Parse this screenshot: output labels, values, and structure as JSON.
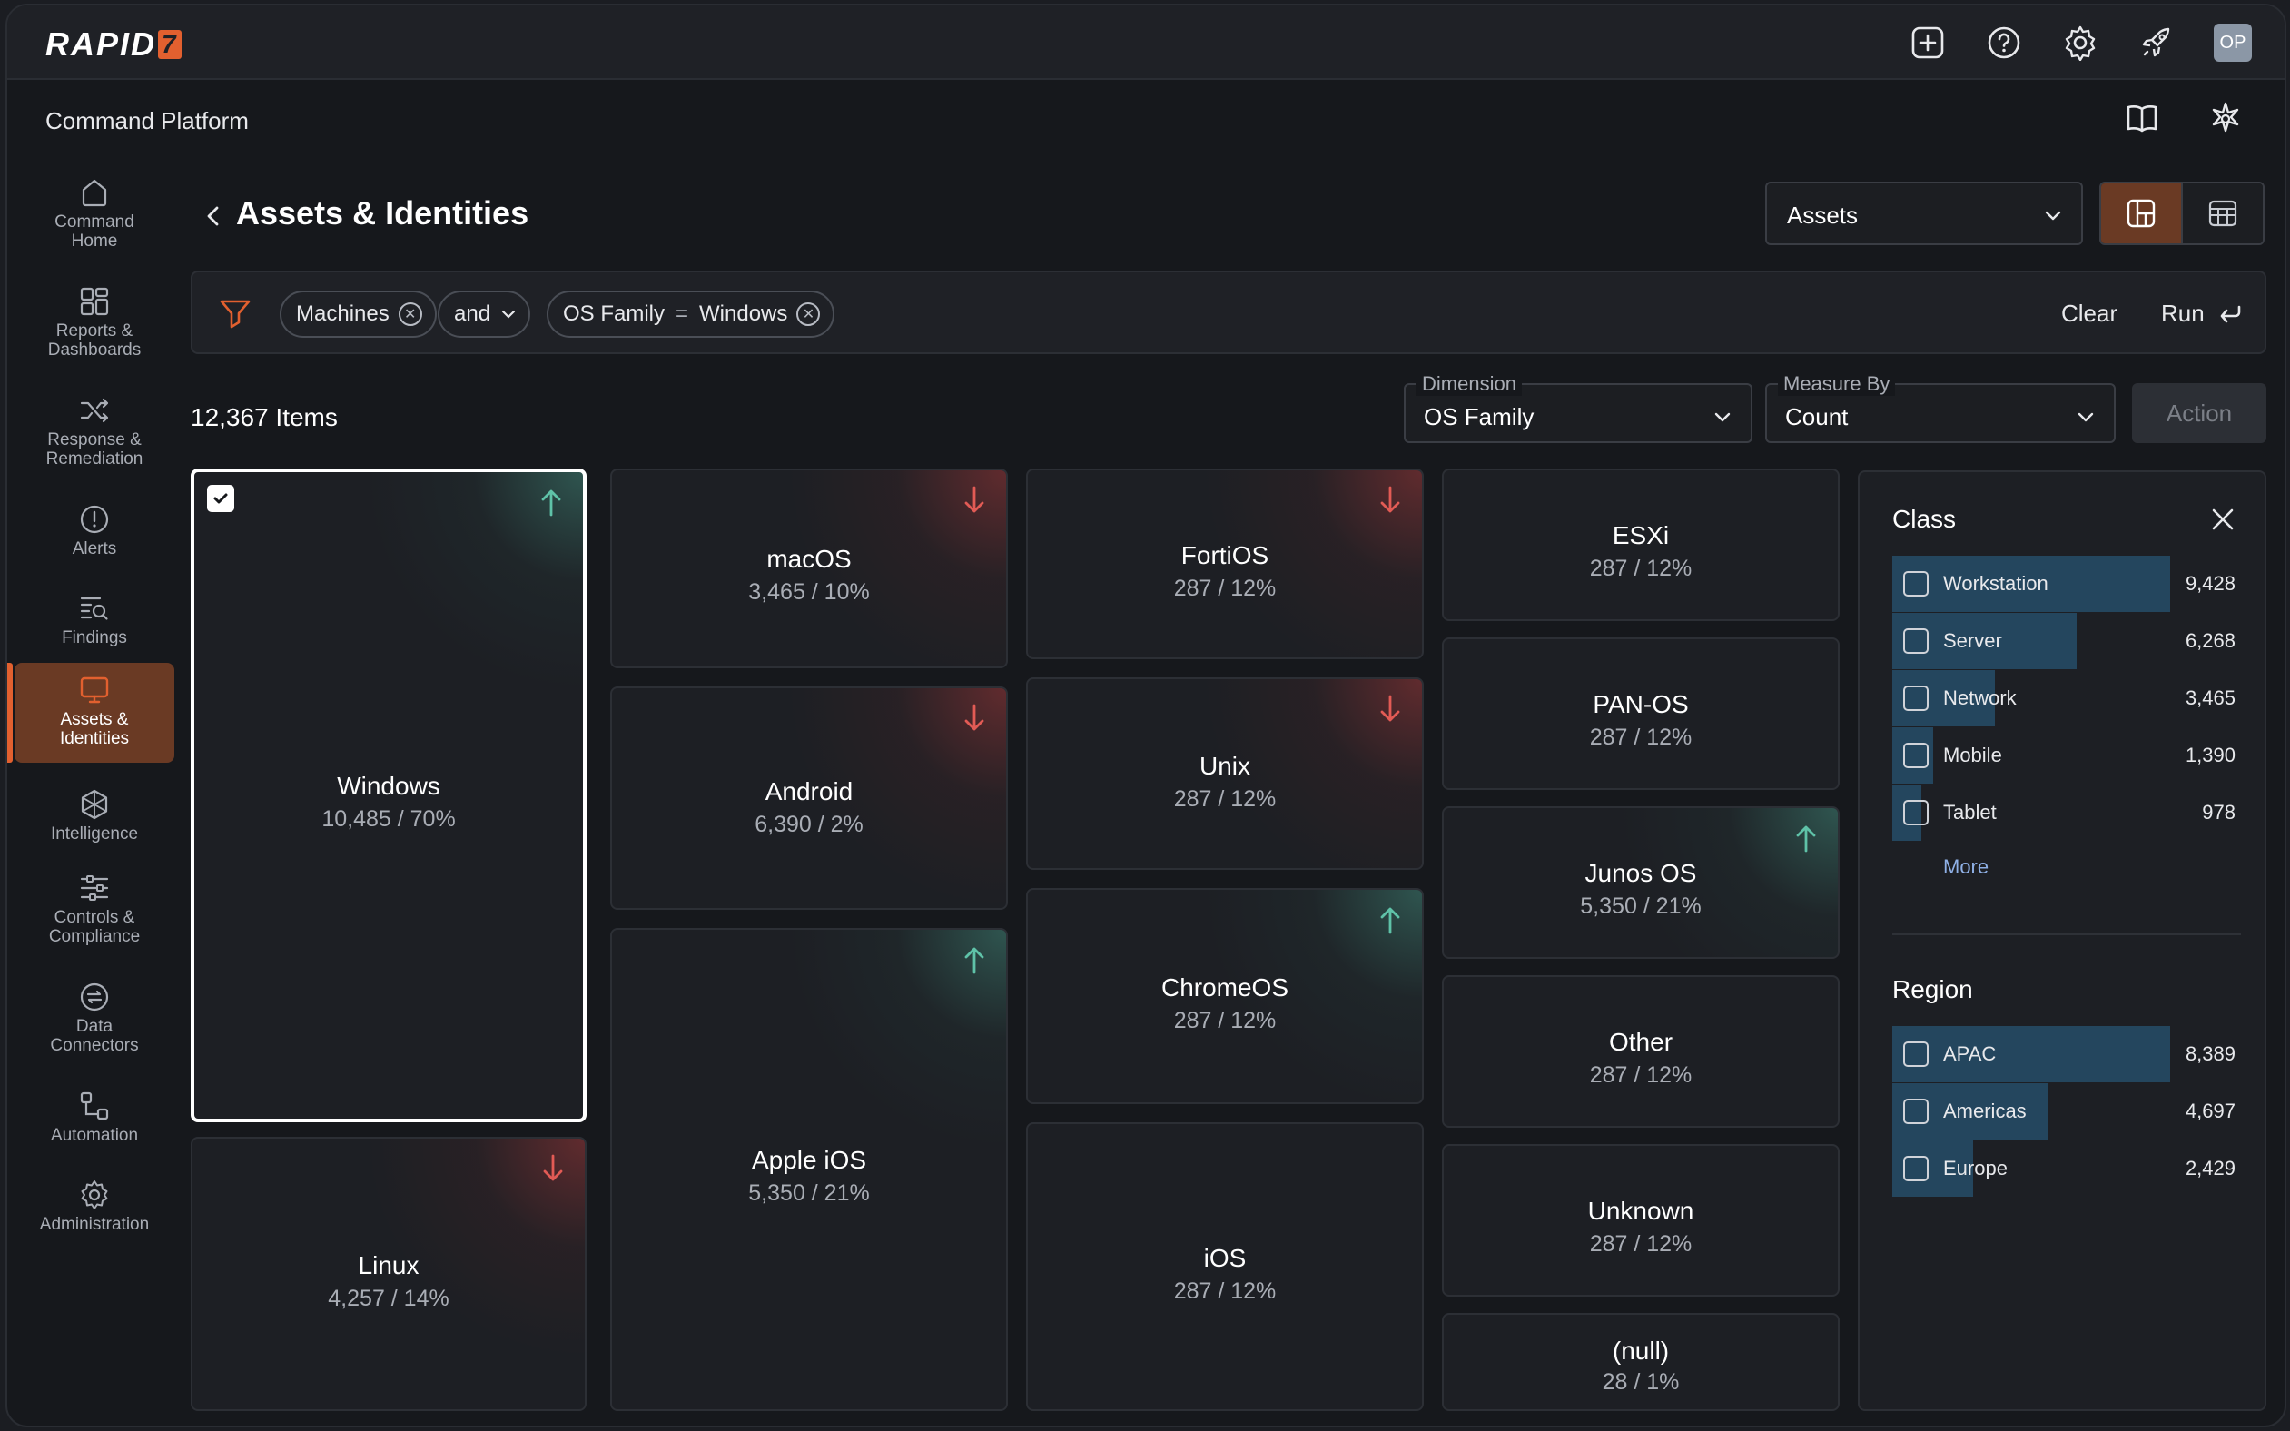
{
  "brand": {
    "logo_text": "RAPID",
    "logo_mark": "7"
  },
  "topbar": {
    "avatar_initials": "OP"
  },
  "header": {
    "platform_title": "Command Platform"
  },
  "sidebar": {
    "items": [
      {
        "label": "Command\nHome"
      },
      {
        "label": "Reports &\nDashboards"
      },
      {
        "label": "Response &\nRemediation"
      },
      {
        "label": "Alerts"
      },
      {
        "label": "Findings"
      },
      {
        "label": "Assets &\nIdentities"
      },
      {
        "label": "Intelligence"
      },
      {
        "label": "Controls &\nCompliance"
      },
      {
        "label": "Data\nConnectors"
      },
      {
        "label": "Automation"
      },
      {
        "label": "Administration"
      }
    ]
  },
  "page": {
    "title": "Assets & Identities",
    "view_select": "Assets"
  },
  "filter": {
    "chip1": "Machines",
    "operator": "and",
    "chip2_field": "OS Family",
    "chip2_eq": "=",
    "chip2_value": "Windows",
    "clear": "Clear",
    "run": "Run"
  },
  "controls": {
    "items_count": "12,367 Items",
    "dimension_label": "Dimension",
    "dimension_value": "OS Family",
    "measure_label": "Measure By",
    "measure_value": "Count",
    "action": "Action"
  },
  "tiles": [
    {
      "name": "Windows",
      "value": "10,485 / 70%",
      "trend": "up"
    },
    {
      "name": "Linux",
      "value": "4,257 / 14%",
      "trend": "down"
    },
    {
      "name": "macOS",
      "value": "3,465 / 10%",
      "trend": "down"
    },
    {
      "name": "Android",
      "value": "6,390 / 2%",
      "trend": "down"
    },
    {
      "name": "Apple iOS",
      "value": "5,350 / 21%",
      "trend": "up"
    },
    {
      "name": "FortiOS",
      "value": "287 / 12%",
      "trend": "down"
    },
    {
      "name": "Unix",
      "value": "287 / 12%",
      "trend": "down"
    },
    {
      "name": "ChromeOS",
      "value": "287 / 12%",
      "trend": "up"
    },
    {
      "name": "iOS",
      "value": "287 / 12%",
      "trend": "none"
    },
    {
      "name": "ESXi",
      "value": "287 / 12%",
      "trend": "none"
    },
    {
      "name": "PAN-OS",
      "value": "287 / 12%",
      "trend": "none"
    },
    {
      "name": "Junos OS",
      "value": "5,350 / 21%",
      "trend": "up"
    },
    {
      "name": "Other",
      "value": "287 / 12%",
      "trend": "none"
    },
    {
      "name": "Unknown",
      "value": "287 / 12%",
      "trend": "none"
    },
    {
      "name": "(null)",
      "value": "28 / 1%",
      "trend": "none"
    }
  ],
  "panel": {
    "class_title": "Class",
    "class_rows": [
      {
        "label": "Workstation",
        "value": "9,428",
        "fraction": 1.0
      },
      {
        "label": "Server",
        "value": "6,268",
        "fraction": 0.665
      },
      {
        "label": "Network",
        "value": "3,465",
        "fraction": 0.368
      },
      {
        "label": "Mobile",
        "value": "1,390",
        "fraction": 0.147
      },
      {
        "label": "Tablet",
        "value": "978",
        "fraction": 0.104
      }
    ],
    "more": "More",
    "region_title": "Region",
    "region_rows": [
      {
        "label": "APAC",
        "value": "8,389",
        "fraction": 1.0
      },
      {
        "label": "Americas",
        "value": "4,697",
        "fraction": 0.56
      },
      {
        "label": "Europe",
        "value": "2,429",
        "fraction": 0.29
      }
    ]
  },
  "colors": {
    "accent": "#e2602f",
    "up": "#5fc2a8",
    "down": "#e25b55",
    "bar": "#24465e"
  }
}
